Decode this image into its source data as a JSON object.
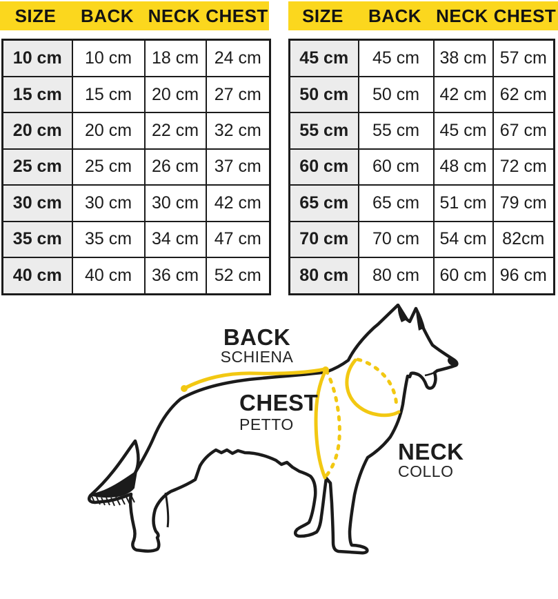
{
  "colors": {
    "header_yellow": "#FBD71E",
    "annotation_yellow": "#F2C812",
    "size_column_grey": "#ECECEC",
    "outline_black": "#1B1B1B"
  },
  "tables": [
    {
      "id": "small-sizes",
      "headers": [
        "SIZE",
        "BACK",
        "NECK",
        "CHEST"
      ],
      "rows": [
        [
          "10 cm",
          "10 cm",
          "18 cm",
          "24 cm"
        ],
        [
          "15 cm",
          "15 cm",
          "20 cm",
          "27 cm"
        ],
        [
          "20 cm",
          "20 cm",
          "22 cm",
          "32 cm"
        ],
        [
          "25 cm",
          "25 cm",
          "26 cm",
          "37 cm"
        ],
        [
          "30 cm",
          "30 cm",
          "30 cm",
          "42 cm"
        ],
        [
          "35 cm",
          "35 cm",
          "34 cm",
          "47 cm"
        ],
        [
          "40 cm",
          "40 cm",
          "36 cm",
          "52 cm"
        ]
      ]
    },
    {
      "id": "large-sizes",
      "headers": [
        "SIZE",
        "BACK",
        "NECK",
        "CHEST"
      ],
      "rows": [
        [
          "45 cm",
          "45 cm",
          "38 cm",
          "57 cm"
        ],
        [
          "50 cm",
          "50 cm",
          "42 cm",
          "62 cm"
        ],
        [
          "55 cm",
          "55 cm",
          "45 cm",
          "67 cm"
        ],
        [
          "60 cm",
          "60 cm",
          "48 cm",
          "72 cm"
        ],
        [
          "65 cm",
          "65 cm",
          "51 cm",
          "79 cm"
        ],
        [
          "70 cm",
          "70 cm",
          "54 cm",
          "82cm"
        ],
        [
          "80 cm",
          "80 cm",
          "60 cm",
          "96 cm"
        ]
      ]
    }
  ],
  "diagram": {
    "back_label": "BACK",
    "back_sublabel": "SCHIENA",
    "chest_label": "CHEST",
    "chest_sublabel": "PETTO",
    "neck_label": "NECK",
    "neck_sublabel": "COLLO"
  }
}
